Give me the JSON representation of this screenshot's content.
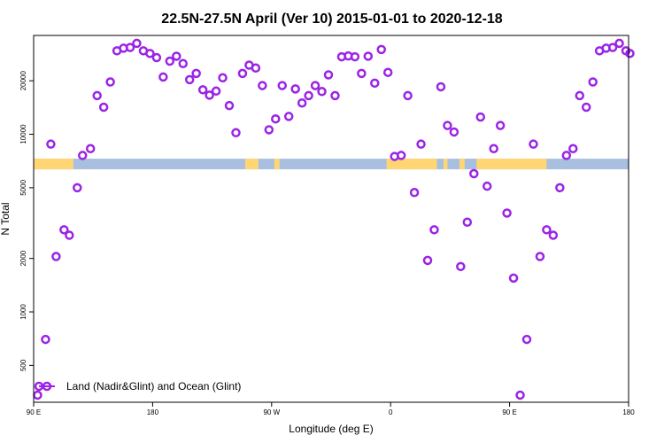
{
  "chart_data": {
    "type": "scatter",
    "title": "22.5N-27.5N April (Ver 10)   2015-01-01 to 2020-12-18",
    "xlabel": "Longitude (deg E)",
    "ylabel": "N Total",
    "x_ticks": [
      {
        "value": 90,
        "label": "90 E"
      },
      {
        "value": 180,
        "label": "180"
      },
      {
        "value": 270,
        "label": "90 W"
      },
      {
        "value": 360,
        "label": "0"
      },
      {
        "value": 450,
        "label": "90 E"
      },
      {
        "value": 540,
        "label": "180"
      }
    ],
    "xlim": [
      90,
      540
    ],
    "y_scale": "log",
    "ylim": [
      310,
      36000
    ],
    "y_ticks": [
      {
        "value": 500,
        "label": "500"
      },
      {
        "value": 1000,
        "label": "1000"
      },
      {
        "value": 2000,
        "label": "2000"
      },
      {
        "value": 5000,
        "label": "5000"
      },
      {
        "value": 10000,
        "label": "10000"
      },
      {
        "value": 20000,
        "label": "20000"
      }
    ],
    "grid": false,
    "legend_position": "bottom-left",
    "series": [
      {
        "name": "Land (Nadir&Glint) and Ocean (Glint)",
        "color": "#9b24e6",
        "marker": "circle-open",
        "points": [
          [
            93,
            340
          ],
          [
            99,
            700
          ],
          [
            103,
            8800
          ],
          [
            107,
            2050
          ],
          [
            113,
            2900
          ],
          [
            117,
            2700
          ],
          [
            123,
            5000
          ],
          [
            127,
            7600
          ],
          [
            133,
            8300
          ],
          [
            138,
            16500
          ],
          [
            143,
            14200
          ],
          [
            148,
            19700
          ],
          [
            153,
            29500
          ],
          [
            158,
            30500
          ],
          [
            163,
            30800
          ],
          [
            168,
            32500
          ],
          [
            173,
            29500
          ],
          [
            178,
            28500
          ],
          [
            183,
            27000
          ],
          [
            188,
            21000
          ],
          [
            193,
            25800
          ],
          [
            198,
            27500
          ],
          [
            203,
            25000
          ],
          [
            208,
            20300
          ],
          [
            213,
            22000
          ],
          [
            218,
            17800
          ],
          [
            223,
            16600
          ],
          [
            228,
            17500
          ],
          [
            233,
            20800
          ],
          [
            238,
            14500
          ],
          [
            243,
            10200
          ],
          [
            248,
            22000
          ],
          [
            253,
            24500
          ],
          [
            258,
            23600
          ],
          [
            263,
            18800
          ],
          [
            268,
            10600
          ],
          [
            273,
            12200
          ],
          [
            278,
            18800
          ],
          [
            283,
            12600
          ],
          [
            288,
            18000
          ],
          [
            293,
            15000
          ],
          [
            298,
            16500
          ],
          [
            303,
            18800
          ],
          [
            308,
            17400
          ],
          [
            313,
            21600
          ],
          [
            318,
            16500
          ],
          [
            323,
            27300
          ],
          [
            328,
            27600
          ],
          [
            333,
            27300
          ],
          [
            338,
            22000
          ],
          [
            343,
            27500
          ],
          [
            348,
            19400
          ],
          [
            353,
            30000
          ],
          [
            358,
            22300
          ],
          [
            363,
            7500
          ],
          [
            368,
            7600
          ],
          [
            373,
            16500
          ],
          [
            378,
            4700
          ],
          [
            383,
            8800
          ],
          [
            388,
            1950
          ],
          [
            393,
            2900
          ],
          [
            398,
            18500
          ],
          [
            403,
            11200
          ],
          [
            408,
            10300
          ],
          [
            413,
            1800
          ],
          [
            418,
            3200
          ],
          [
            423,
            6000
          ],
          [
            428,
            12500
          ],
          [
            433,
            5100
          ],
          [
            438,
            8300
          ],
          [
            443,
            11200
          ],
          [
            448,
            3600
          ],
          [
            453,
            1550
          ],
          [
            458,
            340
          ],
          [
            463,
            700
          ],
          [
            468,
            8800
          ],
          [
            473,
            2050
          ],
          [
            478,
            2900
          ],
          [
            483,
            2700
          ],
          [
            488,
            5000
          ],
          [
            493,
            7600
          ],
          [
            498,
            8300
          ],
          [
            503,
            16500
          ],
          [
            508,
            14200
          ],
          [
            513,
            19700
          ],
          [
            518,
            29500
          ],
          [
            523,
            30500
          ],
          [
            528,
            30800
          ],
          [
            533,
            32500
          ],
          [
            538,
            29500
          ],
          [
            541,
            28500
          ]
        ]
      }
    ],
    "surface_strip": {
      "y_value": 6800,
      "land_color": "#ffd673",
      "ocean_color": "#a8bfe0",
      "land_ranges": [
        [
          90,
          120
        ],
        [
          250,
          260
        ],
        [
          272,
          276
        ],
        [
          357,
          395
        ],
        [
          400,
          403
        ],
        [
          412,
          416
        ],
        [
          425,
          478
        ]
      ]
    }
  }
}
